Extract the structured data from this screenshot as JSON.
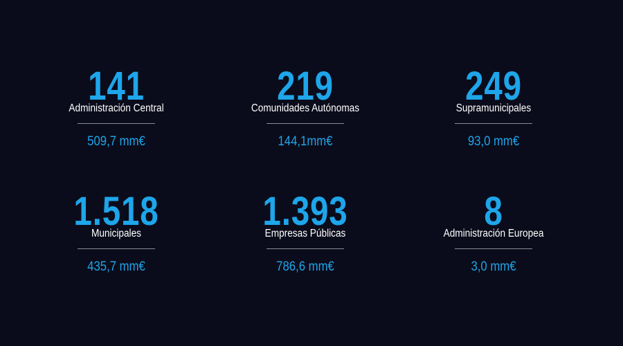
{
  "items": [
    {
      "count": "141",
      "label": "Administración Central",
      "amount": "509,7 mm€"
    },
    {
      "count": "219",
      "label": "Comunidades Autónomas",
      "amount": "144,1mm€"
    },
    {
      "count": "249",
      "label": "Supramunicipales",
      "amount": "93,0 mm€"
    },
    {
      "count": "1.518",
      "label": "Municipales",
      "amount": "435,7 mm€"
    },
    {
      "count": "1.393",
      "label": "Empresas Públicas",
      "amount": "786,6 mm€"
    },
    {
      "count": "8",
      "label": "Administración Europea",
      "amount": "3,0 mm€"
    }
  ]
}
